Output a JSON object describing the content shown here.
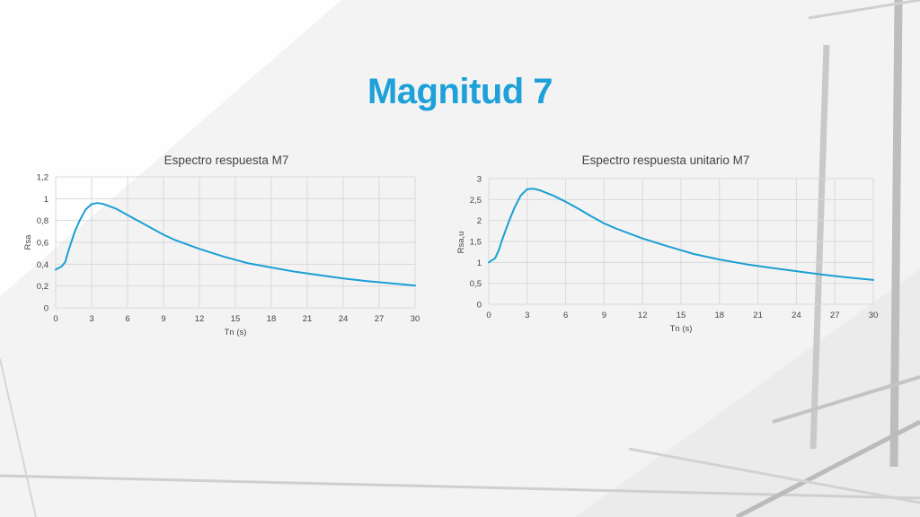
{
  "slide": {
    "title": "Magnitud 7"
  },
  "colors": {
    "accent": "#1da1d8",
    "series": "#1a9fd5"
  },
  "chart_data": [
    {
      "type": "line",
      "title": "Espectro respuesta M7",
      "xlabel": "Tn (s)",
      "ylabel": "Rsa",
      "xlim": [
        0,
        30
      ],
      "ylim": [
        0,
        1.2
      ],
      "xticks": [
        0,
        3,
        6,
        9,
        12,
        15,
        18,
        21,
        24,
        27,
        30
      ],
      "yticks": [
        "0",
        "0,2",
        "0,4",
        "0,6",
        "0,8",
        "1",
        "1,2"
      ],
      "grid": true,
      "x": [
        0,
        0.5,
        0.8,
        1,
        1.3,
        1.6,
        2,
        2.5,
        3,
        3.5,
        4,
        5,
        6,
        7,
        8,
        9,
        10,
        12,
        14,
        16,
        18,
        20,
        22,
        24,
        26,
        28,
        30
      ],
      "y": [
        0.35,
        0.38,
        0.42,
        0.5,
        0.6,
        0.7,
        0.8,
        0.9,
        0.95,
        0.96,
        0.95,
        0.91,
        0.85,
        0.79,
        0.73,
        0.67,
        0.62,
        0.54,
        0.47,
        0.41,
        0.37,
        0.33,
        0.3,
        0.27,
        0.245,
        0.225,
        0.205
      ]
    },
    {
      "type": "line",
      "title": "Espectro respuesta unitario M7",
      "xlabel": "Tn (s)",
      "ylabel": "Rsa,u",
      "xlim": [
        0,
        30
      ],
      "ylim": [
        0,
        3
      ],
      "xticks": [
        0,
        3,
        6,
        9,
        12,
        15,
        18,
        21,
        24,
        27,
        30
      ],
      "yticks": [
        "0",
        "0,5",
        "1",
        "1,5",
        "2",
        "2,5",
        "3"
      ],
      "grid": true,
      "x": [
        0,
        0.5,
        0.8,
        1,
        1.3,
        1.6,
        2,
        2.5,
        3,
        3.5,
        4,
        5,
        6,
        7,
        8,
        9,
        10,
        12,
        14,
        16,
        18,
        20,
        22,
        24,
        26,
        28,
        30
      ],
      "y": [
        1.0,
        1.1,
        1.3,
        1.5,
        1.75,
        2.0,
        2.3,
        2.6,
        2.75,
        2.76,
        2.72,
        2.6,
        2.45,
        2.28,
        2.1,
        1.93,
        1.8,
        1.57,
        1.38,
        1.2,
        1.07,
        0.96,
        0.87,
        0.79,
        0.71,
        0.64,
        0.58
      ]
    }
  ]
}
